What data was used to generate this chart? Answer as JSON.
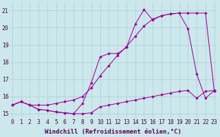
{
  "background_color": "#cde8ec",
  "grid_color": "#a8cdd2",
  "line_color": "#990099",
  "xlim": [
    -0.3,
    23.3
  ],
  "ylim": [
    14.75,
    21.5
  ],
  "xlabel": "Windchill (Refroidissement éolien,°C)",
  "xlabel_fontsize": 6.5,
  "tick_fontsize": 5.8,
  "xticks": [
    0,
    1,
    2,
    3,
    4,
    5,
    6,
    7,
    8,
    9,
    10,
    11,
    12,
    13,
    14,
    15,
    16,
    17,
    18,
    19,
    20,
    21,
    22,
    23
  ],
  "yticks": [
    15,
    16,
    17,
    18,
    19,
    20,
    21
  ],
  "series1_x": [
    0,
    1,
    2,
    3,
    4,
    5,
    6,
    7,
    8,
    9,
    10,
    11,
    12,
    13,
    14,
    15,
    16,
    17,
    18,
    19,
    20,
    21,
    22,
    23
  ],
  "series1_y": [
    15.5,
    15.7,
    15.5,
    15.25,
    15.2,
    15.1,
    15.05,
    15.0,
    15.0,
    15.05,
    15.4,
    15.5,
    15.6,
    15.7,
    15.8,
    15.9,
    16.0,
    16.1,
    16.2,
    16.3,
    16.35,
    15.9,
    16.3,
    16.35
  ],
  "series2_x": [
    0,
    1,
    2,
    3,
    4,
    5,
    6,
    7,
    8,
    9,
    10,
    11,
    12,
    13,
    14,
    15,
    16,
    17,
    18,
    19,
    20,
    21,
    22,
    23
  ],
  "series2_y": [
    15.5,
    15.7,
    15.5,
    15.5,
    15.5,
    15.6,
    15.7,
    15.8,
    16.0,
    16.5,
    17.2,
    17.8,
    18.4,
    18.9,
    19.5,
    20.1,
    20.5,
    20.7,
    20.8,
    20.85,
    20.85,
    20.85,
    20.85,
    16.3
  ],
  "series3_x": [
    0,
    1,
    2,
    3,
    4,
    5,
    6,
    7,
    8,
    9,
    10,
    11,
    12,
    13,
    14,
    15,
    16,
    17,
    18,
    19,
    20,
    21,
    22,
    23
  ],
  "series3_y": [
    15.5,
    15.7,
    15.5,
    15.25,
    15.2,
    15.1,
    15.05,
    15.0,
    15.6,
    16.8,
    18.3,
    18.5,
    18.5,
    18.85,
    20.2,
    21.05,
    20.45,
    20.7,
    20.8,
    20.85,
    19.95,
    17.3,
    15.9,
    16.35
  ]
}
